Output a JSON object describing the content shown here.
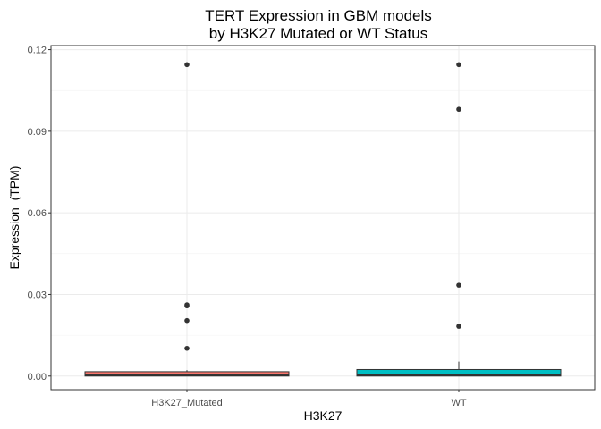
{
  "chart_data": {
    "type": "box",
    "title": "TERT Expression in GBM models\nby H3K27 Mutated or WT Status",
    "title_lines": [
      "TERT Expression in GBM models",
      "by H3K27 Mutated or WT Status"
    ],
    "xlabel": "H3K27",
    "ylabel": "Expression_(TPM)",
    "categories": [
      "H3K27_Mutated",
      "WT"
    ],
    "ylim": [
      -0.005,
      0.1215
    ],
    "yticks": [
      0.0,
      0.03,
      0.06,
      0.09,
      0.12
    ],
    "ytick_labels": [
      "0.00",
      "0.03",
      "0.06",
      "0.09",
      "0.12"
    ],
    "grid": true,
    "legend": "none",
    "boxes": [
      {
        "category": "H3K27_Mutated",
        "q1": 0.0,
        "median": 0.0003,
        "q3": 0.0016,
        "whisker_low": 0.0,
        "whisker_high": 0.0022,
        "outliers": [
          0.1145,
          0.0262,
          0.0258,
          0.0204,
          0.0102
        ],
        "color": "#F8766D"
      },
      {
        "category": "WT",
        "q1": 0.0,
        "median": 0.0003,
        "q3": 0.0024,
        "whisker_low": 0.0,
        "whisker_high": 0.0053,
        "outliers": [
          0.1145,
          0.0981,
          0.0334,
          0.0183
        ],
        "color": "#00BFC4"
      }
    ]
  }
}
